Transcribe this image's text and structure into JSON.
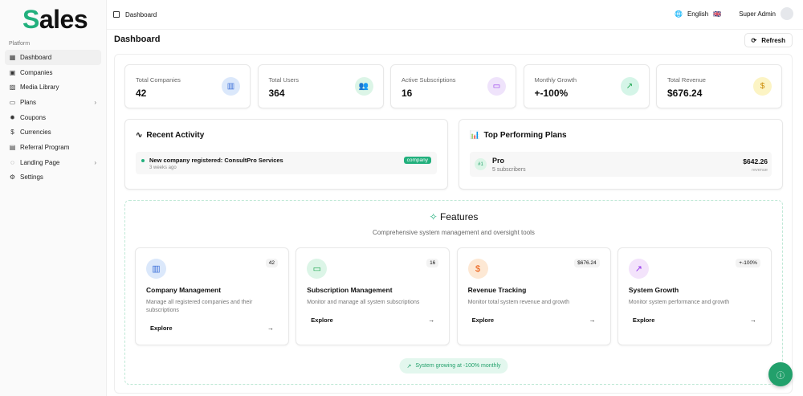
{
  "sidebar": {
    "logo_first": "S",
    "logo_rest": "ales",
    "group": "Platform",
    "items": [
      {
        "label": "Dashboard",
        "icon": "grid-icon",
        "glyph": "▦",
        "active": true
      },
      {
        "label": "Companies",
        "icon": "briefcase-icon",
        "glyph": "▣"
      },
      {
        "label": "Media Library",
        "icon": "image-icon",
        "glyph": "▨"
      },
      {
        "label": "Plans",
        "icon": "credit-card-icon",
        "glyph": "▭",
        "chevron": true
      },
      {
        "label": "Coupons",
        "icon": "badge-icon",
        "glyph": "✹"
      },
      {
        "label": "Currencies",
        "icon": "dollar-icon",
        "glyph": "$"
      },
      {
        "label": "Referral Program",
        "icon": "gift-icon",
        "glyph": "▤"
      },
      {
        "label": "Landing Page",
        "icon": "palette-icon",
        "glyph": "◌",
        "chevron": true
      },
      {
        "label": "Settings",
        "icon": "gear-icon",
        "glyph": "⚙"
      }
    ]
  },
  "header": {
    "breadcrumb": "Dashboard",
    "language": "English",
    "flag": "🇬🇧",
    "user": "Super Admin"
  },
  "page": {
    "title": "Dashboard",
    "refresh": "Refresh"
  },
  "stats": [
    {
      "label": "Total Companies",
      "value": "42",
      "icon": "building-icon",
      "glyph": "▥",
      "bg": "#dbe8fb",
      "fg": "#3b6fd8"
    },
    {
      "label": "Total Users",
      "value": "364",
      "icon": "users-icon",
      "glyph": "👥",
      "bg": "#dcf5e7",
      "fg": "#22a06b"
    },
    {
      "label": "Active Subscriptions",
      "value": "16",
      "icon": "credit-card-icon",
      "glyph": "▭",
      "bg": "#efe3fb",
      "fg": "#9333ea"
    },
    {
      "label": "Monthly Growth",
      "value": "+-100%",
      "icon": "trending-up-icon",
      "glyph": "↗",
      "bg": "#d5f5e8",
      "fg": "#16a34a"
    },
    {
      "label": "Total Revenue",
      "value": "$676.24",
      "icon": "dollar-icon",
      "glyph": "$",
      "bg": "#fcf4c4",
      "fg": "#ca8a04"
    }
  ],
  "activity": {
    "title": "Recent Activity",
    "items": [
      {
        "text": "New company registered: ConsultPro Services",
        "time": "3 weeks ago",
        "tag": "company"
      }
    ]
  },
  "plans": {
    "title": "Top Performing Plans",
    "items": [
      {
        "rank": "#1",
        "name": "Pro",
        "subs": "5 subscribers",
        "amount": "$642.26",
        "amount_label": "revenue"
      }
    ]
  },
  "features": {
    "title": "Features",
    "subtitle": "Comprehensive system management and oversight tools",
    "cards": [
      {
        "title": "Company Management",
        "desc": "Manage all registered companies and their subscriptions",
        "badge": "42",
        "explore": "Explore",
        "icon": "building-icon",
        "glyph": "▥",
        "bg": "#dbe8fb",
        "fg": "#3b6fd8"
      },
      {
        "title": "Subscription Management",
        "desc": "Monitor and manage all system subscriptions",
        "badge": "16",
        "explore": "Explore",
        "icon": "credit-card-icon",
        "glyph": "▭",
        "bg": "#dcf5e7",
        "fg": "#16a34a"
      },
      {
        "title": "Revenue Tracking",
        "desc": "Monitor total system revenue and growth",
        "badge": "$676.24",
        "explore": "Explore",
        "icon": "dollar-icon",
        "glyph": "$",
        "bg": "#fde8d4",
        "fg": "#ea580c"
      },
      {
        "title": "System Growth",
        "desc": "Monitor system performance and growth",
        "badge": "+-100%",
        "explore": "Explore",
        "icon": "trending-up-icon",
        "glyph": "↗",
        "bg": "#f3e3fb",
        "fg": "#9333ea"
      }
    ],
    "footer": "System growing at -100% monthly"
  },
  "colors": {
    "accent": "#22b07d"
  }
}
